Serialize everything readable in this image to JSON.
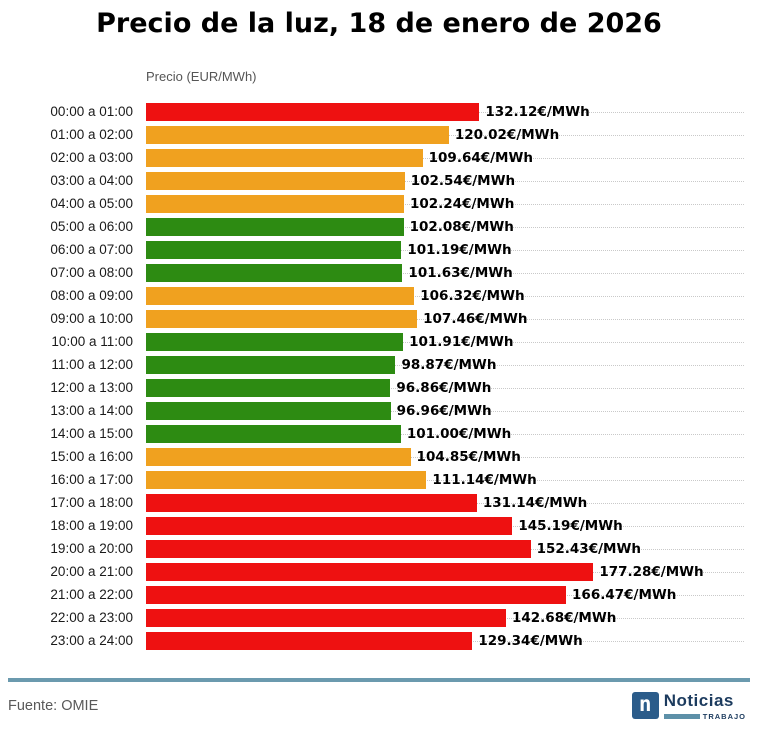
{
  "title": "Precio de la luz, 18 de enero de 2026",
  "footer": {
    "source": "Fuente: OMIE",
    "logo": {
      "square_letter": "n",
      "name": "Noticias",
      "sub": "TRABAJO"
    }
  },
  "chart_data": {
    "type": "bar",
    "orientation": "horizontal",
    "title": "Precio de la luz, 18 de enero de 2026",
    "xlabel": "Precio (EUR/MWh)",
    "ylabel": "",
    "unit_suffix": "€/MWh",
    "xlim": [
      0,
      237
    ],
    "grid": "dotted-horizontal",
    "legend": "none",
    "colors": {
      "red": "#ee1111",
      "orange": "#f0a11f",
      "green": "#2d8b12"
    },
    "categories": [
      "00:00 a 01:00",
      "01:00 a 02:00",
      "02:00 a 03:00",
      "03:00 a 04:00",
      "04:00 a 05:00",
      "05:00 a 06:00",
      "06:00 a 07:00",
      "07:00 a 08:00",
      "08:00 a 09:00",
      "09:00 a 10:00",
      "10:00 a 11:00",
      "11:00 a 12:00",
      "12:00 a 13:00",
      "13:00 a 14:00",
      "14:00 a 15:00",
      "15:00 a 16:00",
      "16:00 a 17:00",
      "17:00 a 18:00",
      "18:00 a 19:00",
      "19:00 a 20:00",
      "20:00 a 21:00",
      "21:00 a 22:00",
      "22:00 a 23:00",
      "23:00 a 24:00"
    ],
    "values": [
      132.12,
      120.02,
      109.64,
      102.54,
      102.24,
      102.08,
      101.19,
      101.63,
      106.32,
      107.46,
      101.91,
      98.87,
      96.86,
      96.96,
      101.0,
      104.85,
      111.14,
      131.14,
      145.19,
      152.43,
      177.28,
      166.47,
      142.68,
      129.34
    ],
    "levels": [
      "red",
      "orange",
      "orange",
      "orange",
      "orange",
      "green",
      "green",
      "green",
      "orange",
      "orange",
      "green",
      "green",
      "green",
      "green",
      "green",
      "orange",
      "orange",
      "red",
      "red",
      "red",
      "red",
      "red",
      "red",
      "red"
    ]
  }
}
